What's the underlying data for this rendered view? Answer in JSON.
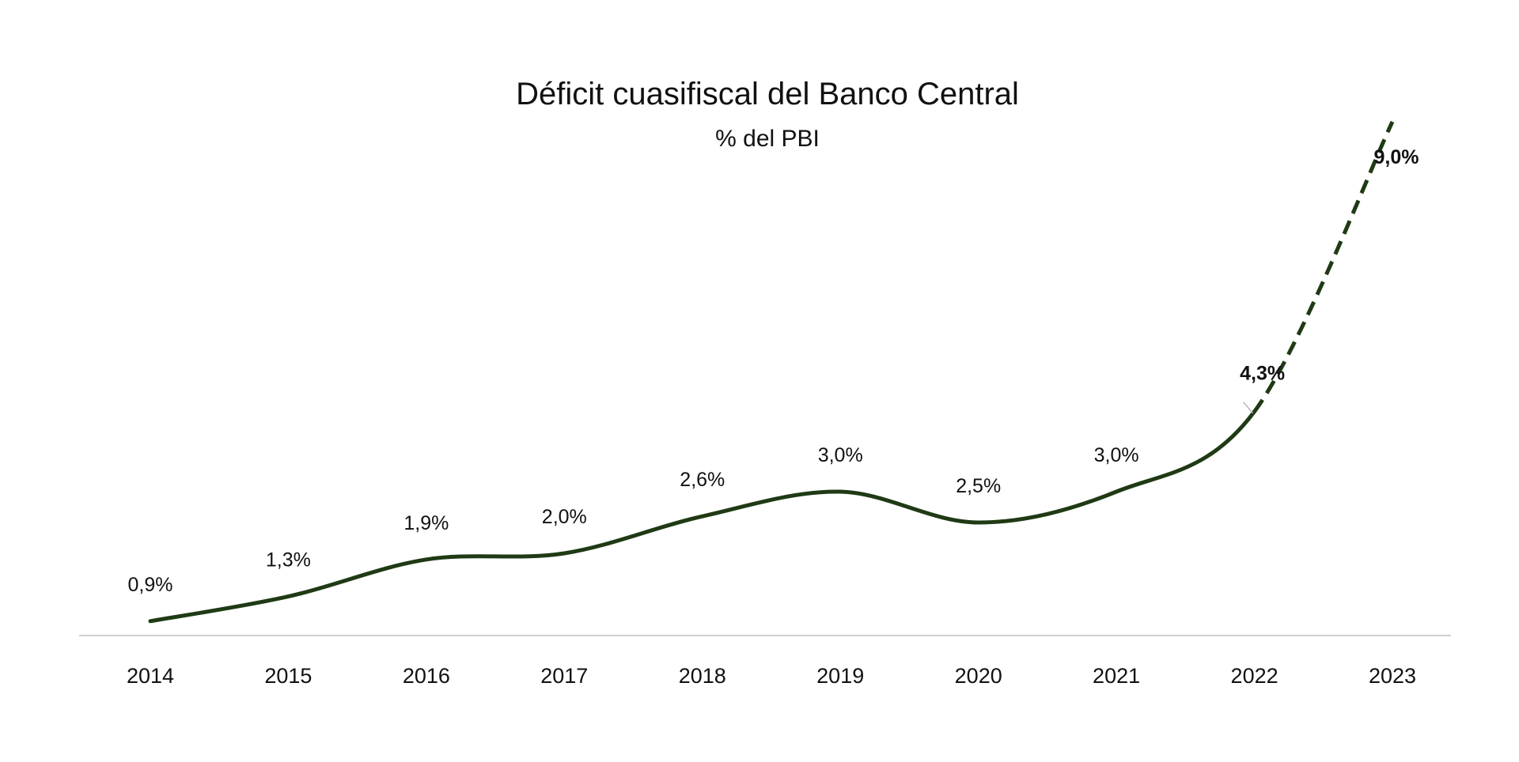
{
  "chart_data": {
    "type": "line",
    "title": "Déficit cuasifiscal del Banco Central",
    "subtitle": "% del PBI",
    "categories": [
      "2014",
      "2015",
      "2016",
      "2017",
      "2018",
      "2019",
      "2020",
      "2021",
      "2022",
      "2023"
    ],
    "series": [
      {
        "values": [
          0.9,
          1.3,
          1.9,
          2.0,
          2.6,
          3.0,
          2.5,
          3.0,
          4.3,
          9.0
        ],
        "labels": [
          "0,9%",
          "1,3%",
          "1,9%",
          "2,0%",
          "2,6%",
          "3,0%",
          "2,5%",
          "3,0%",
          "4,3%",
          "9,0%"
        ],
        "bold_labels": [
          false,
          false,
          false,
          false,
          false,
          false,
          false,
          false,
          true,
          true
        ],
        "dashed_from_index": 8
      }
    ],
    "xlabel": "",
    "ylabel": "",
    "grid": false,
    "line_color": "#1f3a14",
    "baseline_color": "#d0d0d0"
  }
}
